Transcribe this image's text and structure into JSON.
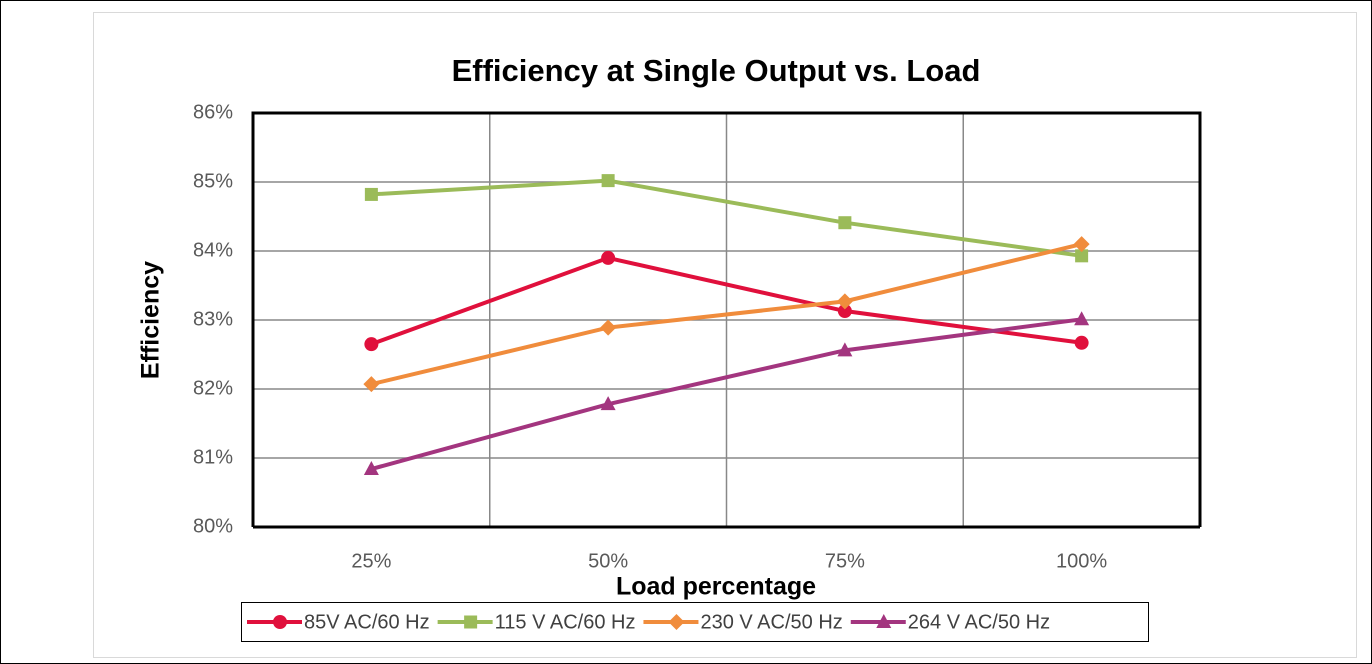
{
  "chart_data": {
    "type": "line",
    "title": "Efficiency at Single Output vs. Load",
    "x_label": "Load percentage",
    "y_label": "Efficiency",
    "categories": [
      "25%",
      "50%",
      "75%",
      "100%"
    ],
    "series": [
      {
        "name": "85V AC/60 Hz",
        "color": "#e0103c",
        "marker": "circle",
        "values": [
          82.65,
          83.9,
          83.13,
          82.67
        ]
      },
      {
        "name": "115 V AC/60 Hz",
        "color": "#9bbb59",
        "marker": "square",
        "values": [
          84.82,
          85.02,
          84.41,
          83.93
        ]
      },
      {
        "name": "230 V AC/50 Hz",
        "color": "#f08c3c",
        "marker": "diamond",
        "values": [
          82.07,
          82.89,
          83.27,
          84.1
        ]
      },
      {
        "name": "264 V AC/50 Hz",
        "color": "#a3357f",
        "marker": "triangle",
        "values": [
          80.84,
          81.78,
          82.56,
          83.01
        ]
      }
    ],
    "ylim": [
      80,
      86
    ],
    "yticks": [
      {
        "value": 80,
        "label": "80%"
      },
      {
        "value": 81,
        "label": "81%"
      },
      {
        "value": 82,
        "label": "82%"
      },
      {
        "value": 83,
        "label": "83%"
      },
      {
        "value": 84,
        "label": "84%"
      },
      {
        "value": 85,
        "label": "85%"
      },
      {
        "value": 86,
        "label": "86%"
      }
    ],
    "grid": true,
    "legend": "bottom"
  }
}
